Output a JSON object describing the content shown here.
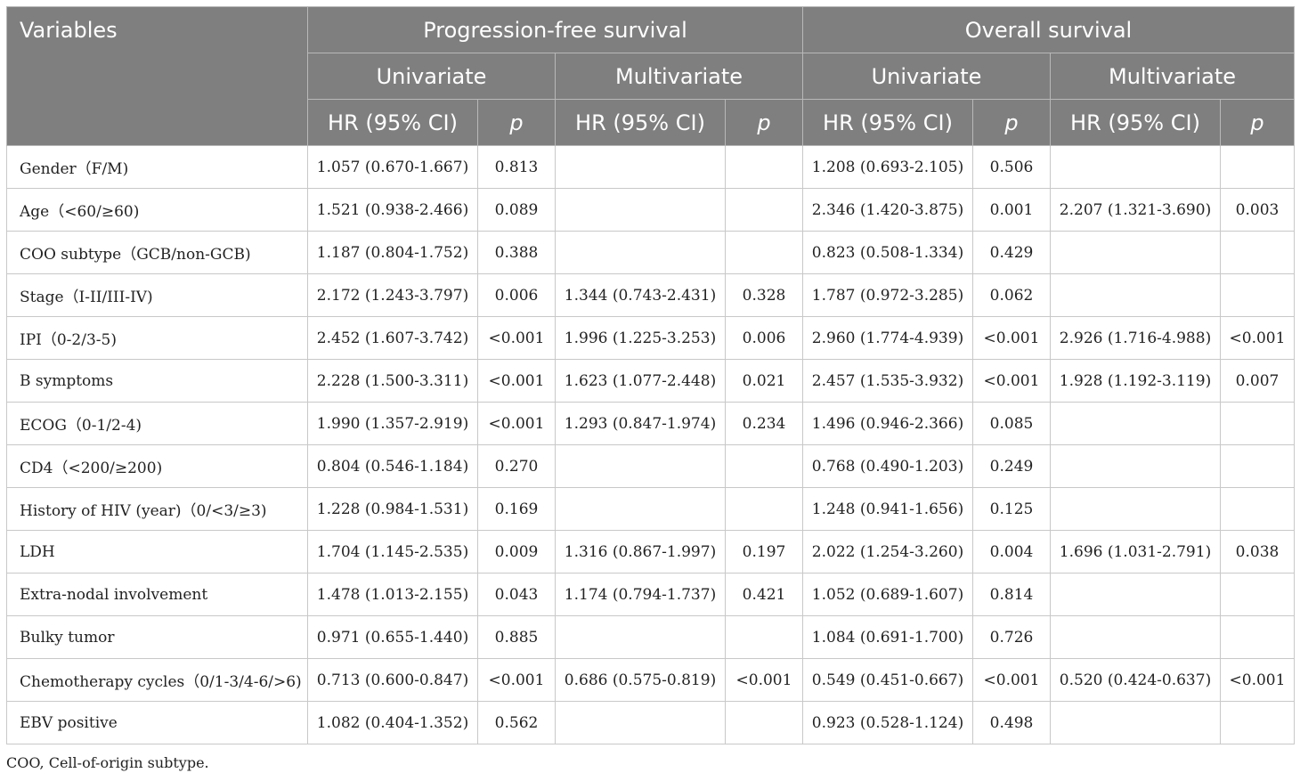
{
  "header": {
    "variables": "Variables",
    "pfs": "Progression-free survival",
    "os": "Overall survival",
    "univariate": "Univariate",
    "multivariate": "Multivariate",
    "hr": "HR (95% CI)",
    "p": "p"
  },
  "rows": [
    [
      "Gender（F/M)",
      "1.057 (0.670-1.667)",
      "0.813",
      "",
      "",
      "1.208 (0.693-2.105)",
      "0.506",
      "",
      ""
    ],
    [
      "Age（<60/≥60)",
      "1.521 (0.938-2.466)",
      "0.089",
      "",
      "",
      "2.346 (1.420-3.875)",
      "0.001",
      "2.207 (1.321-3.690)",
      "0.003"
    ],
    [
      "COO subtype（GCB/non-GCB)",
      "1.187 (0.804-1.752)",
      "0.388",
      "",
      "",
      "0.823 (0.508-1.334)",
      "0.429",
      "",
      ""
    ],
    [
      "Stage（I-II/III-IV)",
      "2.172 (1.243-3.797)",
      "0.006",
      "1.344 (0.743-2.431)",
      "0.328",
      "1.787 (0.972-3.285)",
      "0.062",
      "",
      ""
    ],
    [
      "IPI（0-2/3-5)",
      "2.452 (1.607-3.742)",
      "<0.001",
      "1.996 (1.225-3.253)",
      "0.006",
      "2.960 (1.774-4.939)",
      "<0.001",
      "2.926 (1.716-4.988)",
      "<0.001"
    ],
    [
      "B symptoms",
      "2.228 (1.500-3.311)",
      "<0.001",
      "1.623 (1.077-2.448)",
      "0.021",
      "2.457 (1.535-3.932)",
      "<0.001",
      "1.928 (1.192-3.119)",
      "0.007"
    ],
    [
      "ECOG（0-1/2-4)",
      "1.990 (1.357-2.919)",
      "<0.001",
      "1.293 (0.847-1.974)",
      "0.234",
      "1.496 (0.946-2.366)",
      "0.085",
      "",
      ""
    ],
    [
      "CD4（<200/≥200)",
      "0.804 (0.546-1.184)",
      "0.270",
      "",
      "",
      "0.768 (0.490-1.203)",
      "0.249",
      "",
      ""
    ],
    [
      "History of HIV (year)（0/<3/≥3)",
      "1.228 (0.984-1.531)",
      "0.169",
      "",
      "",
      "1.248 (0.941-1.656)",
      "0.125",
      "",
      ""
    ],
    [
      "LDH",
      "1.704 (1.145-2.535)",
      "0.009",
      "1.316 (0.867-1.997)",
      "0.197",
      "2.022 (1.254-3.260)",
      "0.004",
      "1.696 (1.031-2.791)",
      "0.038"
    ],
    [
      "Extra-nodal involvement",
      "1.478 (1.013-2.155)",
      "0.043",
      "1.174 (0.794-1.737)",
      "0.421",
      "1.052 (0.689-1.607)",
      "0.814",
      "",
      ""
    ],
    [
      "Bulky tumor",
      "0.971 (0.655-1.440)",
      "0.885",
      "",
      "",
      "1.084 (0.691-1.700)",
      "0.726",
      "",
      ""
    ],
    [
      "Chemotherapy cycles（0/1-3/4-6/>6)",
      "0.713 (0.600-0.847)",
      "<0.001",
      "0.686 (0.575-0.819)",
      "<0.001",
      "0.549 (0.451-0.667)",
      "<0.001",
      "0.520 (0.424-0.637)",
      "<0.001"
    ],
    [
      "EBV positive",
      "1.082 (0.404-1.352)",
      "0.562",
      "",
      "",
      "0.923 (0.528-1.124)",
      "0.498",
      "",
      ""
    ]
  ],
  "footnote": "COO, Cell-of-origin subtype."
}
